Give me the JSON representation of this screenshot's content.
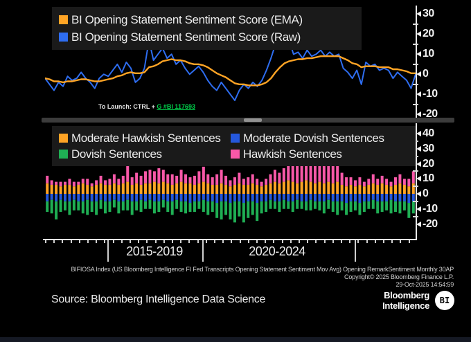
{
  "colors": {
    "background": "#000000",
    "legend_bg": "#1a1a1a",
    "axis": "#e9e9e9",
    "ema_orange": "#ffa425",
    "raw_blue": "#2e6df0",
    "mod_hawkish_orange": "#ffa425",
    "mod_dovish_blue": "#2558dd",
    "dovish_green": "#1faf54",
    "hawkish_pink": "#f858a8",
    "launch_link_green": "#00d24b"
  },
  "launch_note": {
    "prefix": "To Launch: CTRL + ",
    "link": "G #BI 117693"
  },
  "x_axis": {
    "era_labels": [
      "2015-2019",
      "2020-2024"
    ]
  },
  "footnote": {
    "line1": "BIFIOSA Index (US Bloomberg Intelligence FI Fed Transcripts Opening Statement Sentiment Mov Avg) Opening RemarkSentiment Monthly 30AP",
    "line2": "Copyright© 2025 Bloomberg Finance L.P.",
    "line3": "29-Oct-2025 14:54:59"
  },
  "source_line": "Source: Bloomberg Intelligence Data Science",
  "logo": {
    "line1": "Bloomberg",
    "line2": "Intelligence",
    "badge": "BI"
  },
  "chart_data": [
    {
      "type": "line",
      "title": "BI Opening Statement Sentiment Score",
      "legend_position": "top-left",
      "y_ticks": [
        30,
        20,
        10,
        0,
        -10,
        -20
      ],
      "ylim": [
        -24,
        34
      ],
      "grid": false,
      "series": [
        {
          "name": "BI Opening Statement Sentiment Score (EMA)",
          "color": "#ffa425",
          "values": [
            -2,
            -2.5,
            -3.5,
            -3.5,
            -4,
            -3.5,
            -3.5,
            -3,
            -2.5,
            -2.5,
            -3,
            -3.5,
            -3.5,
            -3,
            -2.5,
            -2,
            -1,
            -0.5,
            0.5,
            1,
            0.5,
            0.5,
            1,
            3.5,
            4,
            5,
            6.5,
            7,
            7.5,
            7,
            7,
            6.5,
            5.5,
            5,
            5,
            4.5,
            3.5,
            2,
            0.5,
            -0.5,
            -1.5,
            -3,
            -4.5,
            -5,
            -5,
            -5.5,
            -5.5,
            -5.5,
            -5,
            -4,
            -2,
            1,
            3.5,
            5.5,
            6.5,
            7,
            7.5,
            7.5,
            8,
            8,
            8.5,
            9,
            9,
            9,
            9,
            9,
            8,
            7,
            5.5,
            5,
            3.5,
            4,
            4,
            4,
            3.5,
            3.5,
            3.5,
            2.5,
            2.5,
            2,
            1.5,
            0.5,
            0.5
          ]
        },
        {
          "name": "BI Opening Statement Sentiment Score (Raw)",
          "color": "#2e6df0",
          "values": [
            -2,
            -5,
            -8,
            -4,
            -6,
            -1,
            -3,
            -2,
            1,
            -2,
            -4,
            -7,
            -2,
            0,
            -1,
            2,
            5,
            1,
            6,
            3,
            -4,
            -2,
            3,
            17,
            7,
            10,
            13,
            8,
            10,
            5,
            7,
            3,
            0,
            2,
            4,
            1,
            -3,
            -6,
            -8,
            -4,
            -7,
            -10,
            -13,
            -8,
            -5,
            -7,
            -4,
            -6,
            -3,
            2,
            8,
            15,
            20,
            14,
            17,
            10,
            11,
            8,
            12,
            9,
            10,
            12,
            9,
            11,
            9,
            10,
            3,
            1,
            -2,
            2,
            -5,
            6,
            4,
            5,
            2,
            3,
            2,
            -2,
            1,
            -1,
            -3,
            -7,
            0
          ]
        }
      ]
    },
    {
      "type": "bar",
      "stacked": true,
      "y_ticks": [
        40,
        30,
        20,
        10,
        0,
        -10,
        -20
      ],
      "ylim": [
        -27,
        47
      ],
      "grid": false,
      "x_group_labels": [
        "2015-2019",
        "2020-2024"
      ],
      "series": [
        {
          "name": "Moderate Hawkish Sentences",
          "color": "#ffa425",
          "stack_role": "positive-base",
          "values": [
            7,
            6,
            6,
            5,
            6,
            6,
            5,
            6,
            7,
            6,
            5,
            6,
            7,
            6,
            6,
            7,
            6,
            7,
            8,
            6,
            7,
            6,
            7,
            7,
            8,
            7,
            8,
            7,
            6,
            7,
            8,
            7,
            7,
            6,
            7,
            8,
            7,
            6,
            6,
            7,
            6,
            5,
            6,
            7,
            6,
            6,
            7,
            6,
            5,
            6,
            7,
            8,
            7,
            8,
            9,
            8,
            7,
            8,
            9,
            8,
            7,
            8,
            7,
            8,
            7,
            8,
            6,
            5,
            6,
            5,
            6,
            5,
            6,
            7,
            6,
            7,
            6,
            5,
            6,
            7,
            6,
            5,
            7
          ]
        },
        {
          "name": "Hawkish Sentences",
          "color": "#f858a8",
          "stack_role": "positive-top",
          "values": [
            5,
            3,
            2,
            3,
            2,
            4,
            3,
            2,
            3,
            4,
            2,
            3,
            5,
            3,
            4,
            6,
            4,
            5,
            13,
            5,
            7,
            6,
            8,
            9,
            7,
            10,
            8,
            6,
            7,
            5,
            8,
            6,
            4,
            6,
            8,
            10,
            6,
            5,
            7,
            9,
            6,
            4,
            5,
            7,
            4,
            5,
            6,
            4,
            3,
            4,
            6,
            8,
            7,
            9,
            11,
            14,
            18,
            16,
            19,
            17,
            15,
            18,
            14,
            16,
            13,
            11,
            8,
            6,
            5,
            4,
            5,
            3,
            4,
            6,
            4,
            5,
            4,
            3,
            5,
            6,
            4,
            5,
            8
          ]
        },
        {
          "name": "Moderate Dovish Sentences",
          "color": "#2558dd",
          "stack_role": "negative-base",
          "values": [
            -5,
            -4,
            -5,
            -4,
            -5,
            -5,
            -4,
            -5,
            -5,
            -4,
            -5,
            -5,
            -4,
            -5,
            -5,
            -4,
            -5,
            -5,
            -4,
            -5,
            -5,
            -4,
            -5,
            -4,
            -5,
            -5,
            -4,
            -5,
            -5,
            -4,
            -5,
            -5,
            -6,
            -5,
            -5,
            -4,
            -5,
            -5,
            -6,
            -5,
            -5,
            -6,
            -5,
            -5,
            -6,
            -5,
            -5,
            -6,
            -5,
            -5,
            -4,
            -5,
            -5,
            -4,
            -5,
            -5,
            -4,
            -5,
            -5,
            -4,
            -5,
            -5,
            -5,
            -4,
            -5,
            -5,
            -5,
            -6,
            -5,
            -5,
            -6,
            -5,
            -5,
            -4,
            -5,
            -5,
            -5,
            -4,
            -5,
            -5,
            -5,
            -6,
            -5
          ]
        },
        {
          "name": "Dovish Sentences",
          "color": "#1faf54",
          "stack_role": "negative-bottom",
          "values": [
            -7,
            -9,
            -12,
            -8,
            -6,
            -9,
            -7,
            -6,
            -8,
            -10,
            -7,
            -9,
            -6,
            -8,
            -7,
            -5,
            -8,
            -6,
            -7,
            -9,
            -6,
            -8,
            -5,
            -6,
            -8,
            -7,
            -5,
            -7,
            -9,
            -6,
            -7,
            -8,
            -6,
            -7,
            -5,
            -8,
            -9,
            -7,
            -10,
            -12,
            -9,
            -11,
            -14,
            -10,
            -13,
            -11,
            -9,
            -12,
            -8,
            -7,
            -6,
            -5,
            -7,
            -6,
            -5,
            -7,
            -6,
            -5,
            -6,
            -7,
            -5,
            -6,
            -8,
            -6,
            -7,
            -9,
            -6,
            -8,
            -7,
            -6,
            -8,
            -7,
            -5,
            -6,
            -8,
            -7,
            -6,
            -9,
            -7,
            -8,
            -6,
            -10,
            -8
          ]
        }
      ]
    }
  ]
}
